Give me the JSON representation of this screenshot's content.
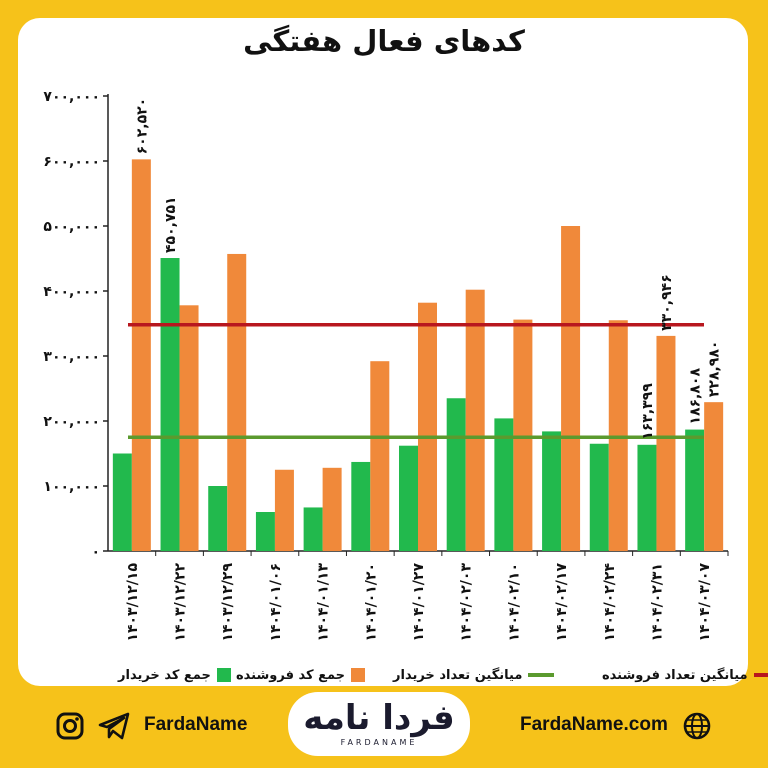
{
  "title": "کدهای فعال هفتگی",
  "chart_data": {
    "type": "bar",
    "title": "کدهای فعال هفتگی",
    "categories": [
      "۱۴۰۳/۱۲/۱۵",
      "۱۴۰۳/۱۲/۲۲",
      "۱۴۰۳/۱۲/۲۹",
      "۱۴۰۴/۰۱/۰۶",
      "۱۴۰۴/۰۱/۱۳",
      "۱۴۰۴/۰۱/۲۰",
      "۱۴۰۴/۰۱/۲۷",
      "۱۴۰۴/۰۲/۰۳",
      "۱۴۰۴/۰۲/۱۰",
      "۱۴۰۴/۰۲/۱۷",
      "۱۴۰۴/۰۲/۲۴",
      "۱۴۰۴/۰۲/۳۱",
      "۱۴۰۴/۰۳/۰۷"
    ],
    "series": [
      {
        "name": "جمع کد خریدار",
        "color": "#22b94d",
        "values": [
          150000,
          450751,
          100000,
          60000,
          67000,
          137000,
          162000,
          235000,
          204000,
          184000,
          165000,
          163399,
          186808
        ]
      },
      {
        "name": "جمع کد فروشنده",
        "color": "#f0893a",
        "values": [
          602520,
          378000,
          457000,
          125000,
          128000,
          292000,
          382000,
          402000,
          356000,
          500000,
          355000,
          330946,
          228980
        ]
      }
    ],
    "lines": [
      {
        "name": "میانگین تعداد فروشنده",
        "color": "#b8171e",
        "value": 348000
      },
      {
        "name": "میانگین تعداد خریدار",
        "color": "#5b9a2e",
        "value": 175000
      }
    ],
    "data_labels": [
      {
        "series": 0,
        "index": 1,
        "text": "۴۵۰,۷۵۱"
      },
      {
        "series": 1,
        "index": 0,
        "text": "۶۰۲,۵۲۰"
      },
      {
        "series": 0,
        "index": 11,
        "text": "۱۶۳,۳۹۹"
      },
      {
        "series": 1,
        "index": 11,
        "text": "۳۳۰,۹۴۶"
      },
      {
        "series": 0,
        "index": 12,
        "text": "۱۸۶,۸۰۸"
      },
      {
        "series": 1,
        "index": 12,
        "text": "۲۲۸,۹۸۰"
      }
    ],
    "yticks": [
      "۰",
      "۱۰۰,۰۰۰",
      "۲۰۰,۰۰۰",
      "۳۰۰,۰۰۰",
      "۴۰۰,۰۰۰",
      "۵۰۰,۰۰۰",
      "۶۰۰,۰۰۰",
      "۷۰۰,۰۰۰"
    ],
    "ylim": [
      0,
      700000
    ],
    "grid": false,
    "legend_position": "bottom"
  },
  "legend": {
    "seller_avg": "میانگین تعداد فروشنده",
    "buyer_avg": "میانگین تعداد خریدار",
    "seller_sum": "جمع کد فروشنده",
    "buyer_sum": "جمع کد خریدار"
  },
  "footer": {
    "left_handle": "FardaName",
    "site": "FardaName.com",
    "logo": "فردا نامه",
    "logo_sub": "FARDANAME"
  },
  "icons": [
    "instagram-icon",
    "telegram-icon",
    "globe-icon"
  ]
}
